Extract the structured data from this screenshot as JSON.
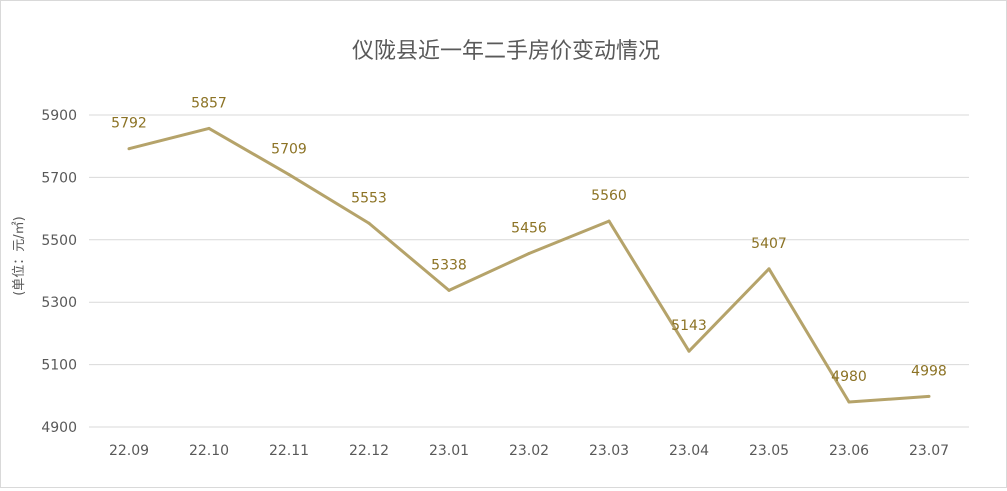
{
  "chart_data": {
    "type": "line",
    "title": "仪陇县近一年二手房价变动情况",
    "xlabel": "",
    "ylabel": "(单位：元/㎡)",
    "categories": [
      "22.09",
      "22.10",
      "22.11",
      "22.12",
      "23.01",
      "23.02",
      "23.03",
      "23.04",
      "23.05",
      "23.06",
      "23.07"
    ],
    "series": [
      {
        "values": [
          5792,
          5857,
          5709,
          5553,
          5338,
          5456,
          5560,
          5143,
          5407,
          4980,
          4998
        ]
      }
    ],
    "yticks": [
      4900,
      5100,
      5300,
      5500,
      5700,
      5900
    ],
    "ylim": [
      4900,
      5900
    ],
    "grid": true,
    "legend": "none",
    "colors": {
      "line": "#b5a36a",
      "data_label": "#8c7325",
      "grid": "#d9d9d9",
      "text": "#595959"
    }
  }
}
